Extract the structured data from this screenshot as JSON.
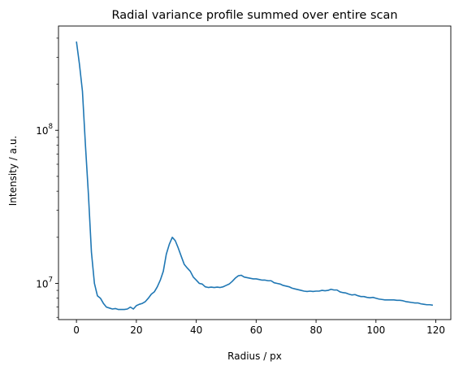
{
  "chart_data": {
    "type": "line",
    "title": "Radial variance profile summed over entire scan",
    "xlabel": "Radius / px",
    "ylabel": "Intensity / a.u.",
    "xscale": "linear",
    "yscale": "log",
    "xlim": [
      -6,
      125
    ],
    "ylim": [
      5800000,
      480000000
    ],
    "grid": false,
    "line_color": "#1f77b4",
    "x_ticks": [
      {
        "value": 0,
        "label": "0"
      },
      {
        "value": 20,
        "label": "20"
      },
      {
        "value": 40,
        "label": "40"
      },
      {
        "value": 60,
        "label": "60"
      },
      {
        "value": 80,
        "label": "80"
      },
      {
        "value": 100,
        "label": "100"
      },
      {
        "value": 120,
        "label": "120"
      }
    ],
    "y_major_ticks": [
      {
        "value": 10000000,
        "base": "10",
        "exp": "7"
      },
      {
        "value": 100000000,
        "base": "10",
        "exp": "8"
      }
    ],
    "y_minor_ticks": [
      6000000,
      7000000,
      8000000,
      9000000,
      20000000,
      30000000,
      40000000,
      50000000,
      60000000,
      70000000,
      80000000,
      90000000,
      200000000,
      300000000,
      400000000
    ],
    "series": [
      {
        "x": [
          0,
          1,
          2,
          3,
          4,
          5,
          6,
          7,
          8,
          9,
          10,
          11,
          12,
          13,
          14,
          15,
          16,
          17,
          18,
          19,
          20,
          21,
          22,
          23,
          24,
          25,
          26,
          27,
          28,
          29,
          30,
          31,
          32,
          33,
          34,
          35,
          36,
          37,
          38,
          39,
          40,
          41,
          42,
          43,
          44,
          45,
          46,
          47,
          48,
          49,
          50,
          51,
          52,
          53,
          54,
          55,
          56,
          57,
          58,
          59,
          60,
          61,
          62,
          63,
          64,
          65,
          66,
          67,
          68,
          69,
          70,
          71,
          72,
          73,
          74,
          75,
          76,
          77,
          78,
          79,
          80,
          81,
          82,
          83,
          84,
          85,
          86,
          87,
          88,
          89,
          90,
          91,
          92,
          93,
          94,
          95,
          96,
          97,
          98,
          99,
          100,
          101,
          102,
          103,
          104,
          105,
          106,
          107,
          108,
          109,
          110,
          111,
          112,
          113,
          114,
          115,
          116,
          117,
          118,
          119
        ],
        "y": [
          380000000,
          270000000,
          180000000,
          80000000,
          38000000,
          16000000,
          10000000,
          8300000,
          8000000,
          7400000,
          7000000,
          6900000,
          6800000,
          6850000,
          6750000,
          6750000,
          6750000,
          6800000,
          7000000,
          6800000,
          7150000,
          7300000,
          7400000,
          7600000,
          8000000,
          8500000,
          8800000,
          9500000,
          10500000,
          12000000,
          15500000,
          18000000,
          20000000,
          19000000,
          17000000,
          15000000,
          13300000,
          12600000,
          12000000,
          11000000,
          10500000,
          10000000,
          9900000,
          9500000,
          9400000,
          9450000,
          9400000,
          9450000,
          9400000,
          9500000,
          9700000,
          9900000,
          10300000,
          10800000,
          11200000,
          11300000,
          11000000,
          10900000,
          10800000,
          10700000,
          10700000,
          10600000,
          10500000,
          10500000,
          10400000,
          10400000,
          10100000,
          10000000,
          9900000,
          9700000,
          9600000,
          9500000,
          9300000,
          9200000,
          9100000,
          9000000,
          8900000,
          8850000,
          8900000,
          8850000,
          8900000,
          8900000,
          9000000,
          8950000,
          9000000,
          9150000,
          9050000,
          9050000,
          8800000,
          8700000,
          8650000,
          8500000,
          8400000,
          8450000,
          8300000,
          8200000,
          8200000,
          8100000,
          8050000,
          8100000,
          8000000,
          7900000,
          7850000,
          7800000,
          7800000,
          7800000,
          7800000,
          7750000,
          7750000,
          7700000,
          7600000,
          7550000,
          7500000,
          7450000,
          7450000,
          7350000,
          7300000,
          7250000,
          7250000,
          7200000
        ]
      }
    ]
  }
}
